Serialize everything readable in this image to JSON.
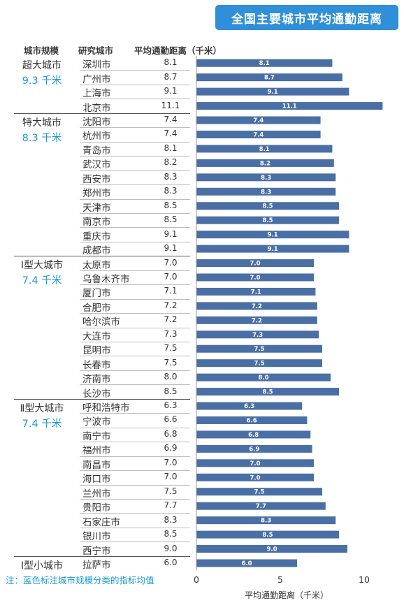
{
  "title": "全国主要城市平均通勤距离",
  "headers": {
    "scale": "城市规模",
    "city": "研究城市",
    "distance": "平均通勤距离（千米）"
  },
  "note": "注：蓝色标注城市规模分类的指标均值",
  "colors": {
    "bar": "#4a6fa5",
    "accent": "#1a9ad6",
    "title_bg": "#2f8fd8"
  },
  "chart_data": {
    "type": "bar",
    "orientation": "horizontal",
    "title": "全国主要城市平均通勤距离",
    "xlabel": "平均通勤距离（千米）",
    "xlim": [
      0,
      11.5
    ],
    "xticks": [
      "0",
      "5",
      "10"
    ],
    "groups": [
      {
        "name": "超大城市",
        "mean": "9.3 千米",
        "cities": [
          {
            "name": "深圳市",
            "value": 8.1,
            "label": "8.1"
          },
          {
            "name": "广州市",
            "value": 8.7,
            "label": "8.7"
          },
          {
            "name": "上海市",
            "value": 9.1,
            "label": "9.1"
          },
          {
            "name": "北京市",
            "value": 11.1,
            "label": "11.1"
          }
        ]
      },
      {
        "name": "特大城市",
        "mean": "8.3 千米",
        "cities": [
          {
            "name": "沈阳市",
            "value": 7.4,
            "label": "7.4"
          },
          {
            "name": "杭州市",
            "value": 7.4,
            "label": "7.4"
          },
          {
            "name": "青岛市",
            "value": 8.1,
            "label": "8.1"
          },
          {
            "name": "武汉市",
            "value": 8.2,
            "label": "8.2"
          },
          {
            "name": "西安市",
            "value": 8.3,
            "label": "8.3"
          },
          {
            "name": "郑州市",
            "value": 8.3,
            "label": "8.3"
          },
          {
            "name": "天津市",
            "value": 8.5,
            "label": "8.5"
          },
          {
            "name": "南京市",
            "value": 8.5,
            "label": "8.5"
          },
          {
            "name": "重庆市",
            "value": 9.1,
            "label": "9.1"
          },
          {
            "name": "成都市",
            "value": 9.1,
            "label": "9.1"
          }
        ]
      },
      {
        "name": "Ⅰ型大城市",
        "mean": "7.4 千米",
        "cities": [
          {
            "name": "太原市",
            "value": 7.0,
            "label": "7.0"
          },
          {
            "name": "乌鲁木齐市",
            "value": 7.0,
            "label": "7.0"
          },
          {
            "name": "厦门市",
            "value": 7.1,
            "label": "7.1"
          },
          {
            "name": "合肥市",
            "value": 7.2,
            "label": "7.2"
          },
          {
            "name": "哈尔滨市",
            "value": 7.2,
            "label": "7.2"
          },
          {
            "name": "大连市",
            "value": 7.3,
            "label": "7.3"
          },
          {
            "name": "昆明市",
            "value": 7.5,
            "label": "7.5"
          },
          {
            "name": "长春市",
            "value": 7.5,
            "label": "7.5"
          },
          {
            "name": "济南市",
            "value": 8.0,
            "label": "8.0"
          },
          {
            "name": "长沙市",
            "value": 8.5,
            "label": "8.5"
          }
        ]
      },
      {
        "name": "Ⅱ型大城市",
        "mean": "7.4 千米",
        "cities": [
          {
            "name": "呼和浩特市",
            "value": 6.3,
            "label": "6.3"
          },
          {
            "name": "宁波市",
            "value": 6.6,
            "label": "6.6"
          },
          {
            "name": "南宁市",
            "value": 6.8,
            "label": "6.8"
          },
          {
            "name": "福州市",
            "value": 6.9,
            "label": "6.9"
          },
          {
            "name": "南昌市",
            "value": 7.0,
            "label": "7.0"
          },
          {
            "name": "海口市",
            "value": 7.0,
            "label": "7.0"
          },
          {
            "name": "兰州市",
            "value": 7.5,
            "label": "7.5"
          },
          {
            "name": "贵阳市",
            "value": 7.7,
            "label": "7.7"
          },
          {
            "name": "石家庄市",
            "value": 8.3,
            "label": "8.3"
          },
          {
            "name": "银川市",
            "value": 8.5,
            "label": "8.5"
          },
          {
            "name": "西宁市",
            "value": 9.0,
            "label": "9.0"
          }
        ]
      },
      {
        "name": "Ⅰ型小城市",
        "mean": "",
        "cities": [
          {
            "name": "拉萨市",
            "value": 6.0,
            "label": "6.0"
          }
        ]
      }
    ]
  }
}
